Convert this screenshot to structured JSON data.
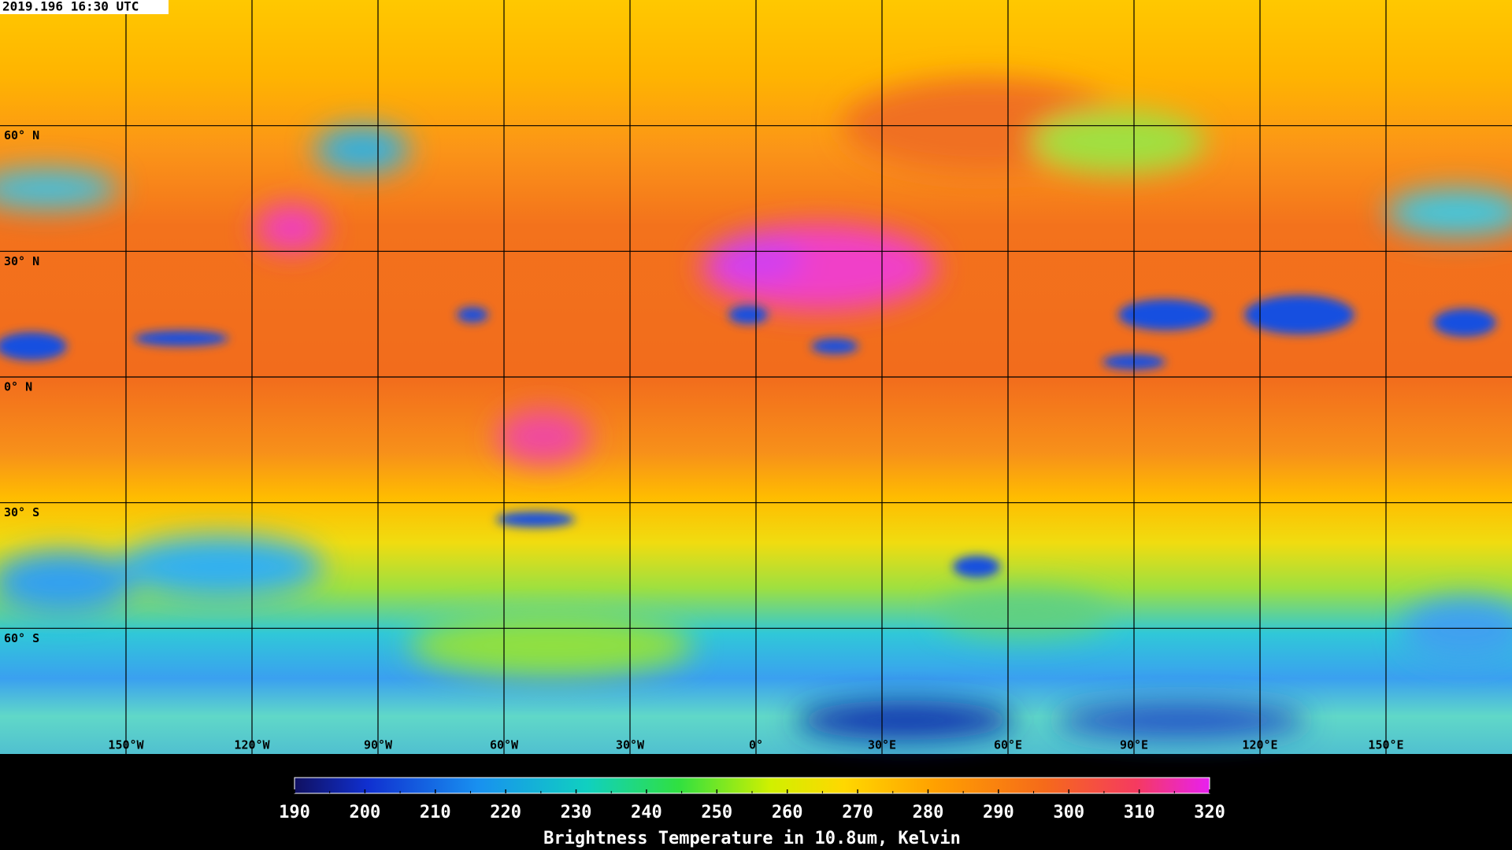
{
  "timestamp": "2019.196 16:30 UTC",
  "map": {
    "latitude_labels": [
      "60° N",
      "30° N",
      "0° N",
      "30° S",
      "60° S"
    ],
    "longitude_labels": [
      "150°W",
      "120°W",
      "90°W",
      "60°W",
      "30°W",
      "0°",
      "30°E",
      "60°E",
      "90°E",
      "120°E",
      "150°E"
    ]
  },
  "colorbar": {
    "title": "Brightness Temperature in 10.8um, Kelvin",
    "range": [
      190,
      320
    ],
    "ticks": [
      190,
      200,
      210,
      220,
      230,
      240,
      250,
      260,
      270,
      280,
      290,
      300,
      310,
      320
    ]
  }
}
